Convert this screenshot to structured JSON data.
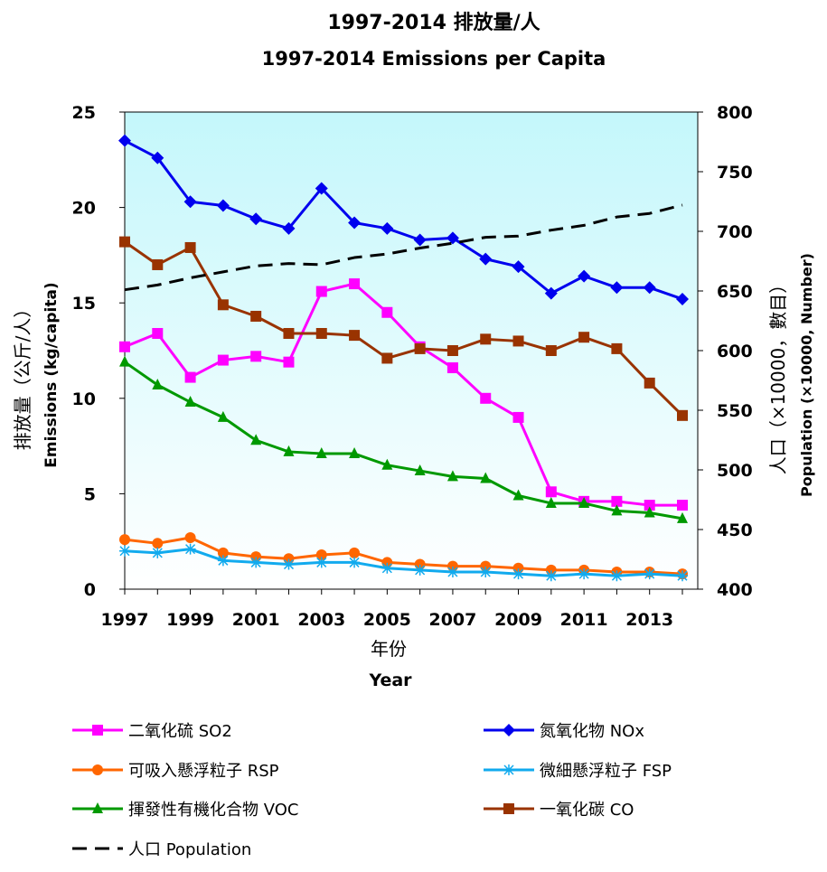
{
  "chart_data": {
    "type": "line",
    "title": "1997-2014 排放量/人",
    "subtitle": "1997-2014 Emissions per Capita",
    "xlabel_zh": "年份",
    "xlabel_en": "Year",
    "ylabel_left_zh": "排放量（公斤/人）",
    "ylabel_left_en": "Emissions (kg/capita)",
    "ylabel_right_zh": "人口（×10000，數目）",
    "ylabel_right_en": "Population (×10000, Number)",
    "x": [
      1997,
      1998,
      1999,
      2000,
      2001,
      2002,
      2003,
      2004,
      2005,
      2006,
      2007,
      2008,
      2009,
      2010,
      2011,
      2012,
      2013,
      2014
    ],
    "x_tick_labels": [
      "1997",
      "1999",
      "2001",
      "2003",
      "2005",
      "2007",
      "2009",
      "2011",
      "2013"
    ],
    "ylim_left": [
      0,
      25
    ],
    "y_left_ticks": [
      "0",
      "5",
      "10",
      "15",
      "20",
      "25"
    ],
    "ylim_right": [
      400,
      800
    ],
    "y_right_ticks": [
      "400",
      "450",
      "500",
      "550",
      "600",
      "650",
      "700",
      "750",
      "800"
    ],
    "legend_placement": "bottom",
    "series": [
      {
        "name": "二氧化硫 SO2",
        "axis": "left",
        "color": "#ff00ff",
        "marker": "square",
        "values": [
          12.7,
          13.4,
          11.1,
          12.0,
          12.2,
          11.9,
          15.6,
          16.0,
          14.5,
          12.7,
          11.6,
          10.0,
          9.0,
          5.1,
          4.6,
          4.6,
          4.4,
          4.4
        ]
      },
      {
        "name": "氮氧化物 NOx",
        "axis": "left",
        "color": "#0000ee",
        "marker": "diamond",
        "values": [
          23.5,
          22.6,
          20.3,
          20.1,
          19.4,
          18.9,
          21.0,
          19.2,
          18.9,
          18.3,
          18.4,
          17.3,
          16.9,
          15.5,
          16.4,
          15.8,
          15.8,
          15.2
        ]
      },
      {
        "name": "可吸入懸浮粒子 RSP",
        "axis": "left",
        "color": "#ff6600",
        "marker": "circle",
        "values": [
          2.6,
          2.4,
          2.7,
          1.9,
          1.7,
          1.6,
          1.8,
          1.9,
          1.4,
          1.3,
          1.2,
          1.2,
          1.1,
          1.0,
          1.0,
          0.9,
          0.9,
          0.8
        ]
      },
      {
        "name": "微細懸浮粒子 FSP",
        "axis": "left",
        "color": "#11aaee",
        "marker": "star",
        "values": [
          2.0,
          1.9,
          2.1,
          1.5,
          1.4,
          1.3,
          1.4,
          1.4,
          1.1,
          1.0,
          0.9,
          0.9,
          0.8,
          0.7,
          0.8,
          0.7,
          0.8,
          0.7
        ]
      },
      {
        "name": "揮發性有機化合物 VOC",
        "axis": "left",
        "color": "#009900",
        "marker": "triangle",
        "values": [
          11.9,
          10.7,
          9.8,
          9.0,
          7.8,
          7.2,
          7.1,
          7.1,
          6.5,
          6.2,
          5.9,
          5.8,
          4.9,
          4.5,
          4.5,
          4.1,
          4.0,
          3.7
        ]
      },
      {
        "name": "一氧化碳 CO",
        "axis": "left",
        "color": "#993300",
        "marker": "square",
        "values": [
          18.2,
          17.0,
          17.9,
          14.9,
          14.3,
          13.4,
          13.4,
          13.3,
          12.1,
          12.6,
          12.5,
          13.1,
          13.0,
          12.5,
          13.2,
          12.6,
          10.8,
          9.1
        ]
      },
      {
        "name": "人口 Population",
        "axis": "right",
        "color": "#000000",
        "marker": "none",
        "dash": true,
        "values": [
          651.0,
          655.0,
          661.0,
          666.0,
          671.0,
          673.0,
          672.0,
          678.0,
          681.0,
          686.0,
          690.0,
          695.0,
          696.0,
          701.0,
          705.0,
          712.0,
          715.0,
          722.0
        ]
      }
    ]
  }
}
